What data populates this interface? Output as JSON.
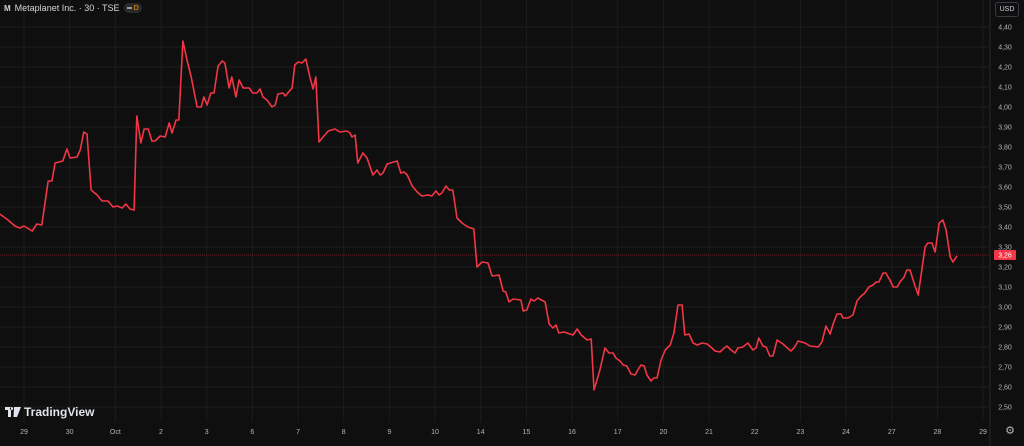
{
  "header": {
    "symbol_icon": "M",
    "title": "Metaplanet Inc. · 30 · TSE",
    "badge_letter": "D"
  },
  "currency_button": "USD",
  "branding": "TradingView",
  "colors": {
    "background": "#0f0f0f",
    "grid": "#1c1c1c",
    "line": "#f23645",
    "axis_text": "#b2b5be",
    "price_label_bg": "#f23645"
  },
  "icons": {
    "settings": "gear-icon",
    "logo": "tradingview-logo-icon"
  },
  "chart_data": {
    "type": "line",
    "title": "Metaplanet Inc. · 30 · TSE",
    "interval": "30",
    "currency": "USD",
    "x_unit": "trading sessions (0 = label 29)",
    "x_ticks": [
      "29",
      "30",
      "Oct",
      "2",
      "3",
      "6",
      "7",
      "8",
      "9",
      "10",
      "14",
      "15",
      "16",
      "17",
      "20",
      "21",
      "22",
      "23",
      "24",
      "27",
      "28",
      "29"
    ],
    "y_ticks": [
      "4,40",
      "4,30",
      "4,20",
      "4,10",
      "4,00",
      "3,90",
      "3,80",
      "3,70",
      "3,60",
      "3,50",
      "3,40",
      "3,30",
      "3,20",
      "3,10",
      "3,00",
      "2,90",
      "2,80",
      "2,70",
      "2,60",
      "2,50"
    ],
    "ylim": [
      2.5,
      4.4
    ],
    "grid": true,
    "last_price": 3.26,
    "last_price_label": "3,26",
    "series": [
      {
        "points": [
          [
            -0.53,
            3.465
          ],
          [
            -0.35,
            3.435
          ],
          [
            -0.2,
            3.405
          ],
          [
            -0.09,
            3.395
          ],
          [
            0,
            3.405
          ],
          [
            0.18,
            3.38
          ],
          [
            0.28,
            3.415
          ],
          [
            0.39,
            3.41
          ],
          [
            0.53,
            3.63
          ],
          [
            0.61,
            3.63
          ],
          [
            0.68,
            3.72
          ],
          [
            0.85,
            3.73
          ],
          [
            0.94,
            3.79
          ],
          [
            1.01,
            3.745
          ],
          [
            1.16,
            3.75
          ],
          [
            1.23,
            3.785
          ],
          [
            1.31,
            3.875
          ],
          [
            1.38,
            3.865
          ],
          [
            1.47,
            3.585
          ],
          [
            1.6,
            3.56
          ],
          [
            1.71,
            3.53
          ],
          [
            1.84,
            3.53
          ],
          [
            1.95,
            3.5
          ],
          [
            2.04,
            3.505
          ],
          [
            2.15,
            3.495
          ],
          [
            2.23,
            3.515
          ],
          [
            2.32,
            3.49
          ],
          [
            2.41,
            3.485
          ],
          [
            2.47,
            3.955
          ],
          [
            2.56,
            3.82
          ],
          [
            2.63,
            3.89
          ],
          [
            2.72,
            3.89
          ],
          [
            2.8,
            3.83
          ],
          [
            2.87,
            3.83
          ],
          [
            2.98,
            3.855
          ],
          [
            3.09,
            3.85
          ],
          [
            3.18,
            3.92
          ],
          [
            3.24,
            3.87
          ],
          [
            3.33,
            3.935
          ],
          [
            3.39,
            3.935
          ],
          [
            3.48,
            4.33
          ],
          [
            3.57,
            4.235
          ],
          [
            3.66,
            4.15
          ],
          [
            3.79,
            4.0
          ],
          [
            3.88,
            4.0
          ],
          [
            3.94,
            4.05
          ],
          [
            4.01,
            4.01
          ],
          [
            4.09,
            4.07
          ],
          [
            4.16,
            4.07
          ],
          [
            4.25,
            4.205
          ],
          [
            4.34,
            4.23
          ],
          [
            4.4,
            4.22
          ],
          [
            4.49,
            4.095
          ],
          [
            4.55,
            4.15
          ],
          [
            4.64,
            4.05
          ],
          [
            4.71,
            4.135
          ],
          [
            4.8,
            4.095
          ],
          [
            4.93,
            4.095
          ],
          [
            5.01,
            4.07
          ],
          [
            5.1,
            4.07
          ],
          [
            5.17,
            4.09
          ],
          [
            5.23,
            4.05
          ],
          [
            5.32,
            4.035
          ],
          [
            5.43,
            4.0
          ],
          [
            5.5,
            4.01
          ],
          [
            5.56,
            4.065
          ],
          [
            5.67,
            4.07
          ],
          [
            5.72,
            4.055
          ],
          [
            5.87,
            4.095
          ],
          [
            5.93,
            4.21
          ],
          [
            6.0,
            4.225
          ],
          [
            6.09,
            4.22
          ],
          [
            6.17,
            4.24
          ],
          [
            6.26,
            4.15
          ],
          [
            6.33,
            4.09
          ],
          [
            6.39,
            4.15
          ],
          [
            6.46,
            3.825
          ],
          [
            6.55,
            3.85
          ],
          [
            6.66,
            3.88
          ],
          [
            6.81,
            3.89
          ],
          [
            6.92,
            3.875
          ],
          [
            7.07,
            3.88
          ],
          [
            7.14,
            3.87
          ],
          [
            7.18,
            3.85
          ],
          [
            7.25,
            3.86
          ],
          [
            7.31,
            3.72
          ],
          [
            7.42,
            3.77
          ],
          [
            7.51,
            3.745
          ],
          [
            7.64,
            3.66
          ],
          [
            7.73,
            3.685
          ],
          [
            7.8,
            3.66
          ],
          [
            7.86,
            3.67
          ],
          [
            7.95,
            3.715
          ],
          [
            8.17,
            3.73
          ],
          [
            8.25,
            3.67
          ],
          [
            8.32,
            3.675
          ],
          [
            8.39,
            3.66
          ],
          [
            8.5,
            3.605
          ],
          [
            8.61,
            3.575
          ],
          [
            8.71,
            3.555
          ],
          [
            8.85,
            3.56
          ],
          [
            8.93,
            3.555
          ],
          [
            9.02,
            3.58
          ],
          [
            9.09,
            3.56
          ],
          [
            9.15,
            3.57
          ],
          [
            9.24,
            3.605
          ],
          [
            9.31,
            3.585
          ],
          [
            9.39,
            3.585
          ],
          [
            9.48,
            3.445
          ],
          [
            9.59,
            3.42
          ],
          [
            9.72,
            3.4
          ],
          [
            9.85,
            3.39
          ],
          [
            9.92,
            3.2
          ],
          [
            10.03,
            3.225
          ],
          [
            10.16,
            3.22
          ],
          [
            10.25,
            3.155
          ],
          [
            10.4,
            3.16
          ],
          [
            10.49,
            3.08
          ],
          [
            10.55,
            3.075
          ],
          [
            10.62,
            3.025
          ],
          [
            10.71,
            3.04
          ],
          [
            10.88,
            3.035
          ],
          [
            10.93,
            2.98
          ],
          [
            11.01,
            2.985
          ],
          [
            11.1,
            3.04
          ],
          [
            11.17,
            3.03
          ],
          [
            11.25,
            3.045
          ],
          [
            11.41,
            3.025
          ],
          [
            11.5,
            2.915
          ],
          [
            11.58,
            2.895
          ],
          [
            11.65,
            2.91
          ],
          [
            11.71,
            2.87
          ],
          [
            11.82,
            2.875
          ],
          [
            12.02,
            2.86
          ],
          [
            12.11,
            2.89
          ],
          [
            12.2,
            2.86
          ],
          [
            12.33,
            2.835
          ],
          [
            12.42,
            2.84
          ],
          [
            12.48,
            2.585
          ],
          [
            12.61,
            2.685
          ],
          [
            12.72,
            2.795
          ],
          [
            12.81,
            2.77
          ],
          [
            12.9,
            2.77
          ],
          [
            12.96,
            2.745
          ],
          [
            13.05,
            2.73
          ],
          [
            13.12,
            2.71
          ],
          [
            13.2,
            2.705
          ],
          [
            13.29,
            2.665
          ],
          [
            13.38,
            2.66
          ],
          [
            13.44,
            2.685
          ],
          [
            13.51,
            2.71
          ],
          [
            13.58,
            2.705
          ],
          [
            13.64,
            2.66
          ],
          [
            13.73,
            2.63
          ],
          [
            13.79,
            2.645
          ],
          [
            13.86,
            2.645
          ],
          [
            13.95,
            2.735
          ],
          [
            14.04,
            2.785
          ],
          [
            14.15,
            2.81
          ],
          [
            14.23,
            2.87
          ],
          [
            14.32,
            3.01
          ],
          [
            14.41,
            3.01
          ],
          [
            14.47,
            2.86
          ],
          [
            14.56,
            2.865
          ],
          [
            14.65,
            2.82
          ],
          [
            14.74,
            2.81
          ],
          [
            14.85,
            2.82
          ],
          [
            14.96,
            2.815
          ],
          [
            15.06,
            2.795
          ],
          [
            15.13,
            2.78
          ],
          [
            15.24,
            2.775
          ],
          [
            15.31,
            2.79
          ],
          [
            15.39,
            2.805
          ],
          [
            15.48,
            2.785
          ],
          [
            15.57,
            2.77
          ],
          [
            15.63,
            2.795
          ],
          [
            15.74,
            2.8
          ],
          [
            15.85,
            2.82
          ],
          [
            15.96,
            2.785
          ],
          [
            16.03,
            2.795
          ],
          [
            16.09,
            2.845
          ],
          [
            16.18,
            2.805
          ],
          [
            16.25,
            2.8
          ],
          [
            16.33,
            2.755
          ],
          [
            16.4,
            2.755
          ],
          [
            16.49,
            2.835
          ],
          [
            16.62,
            2.815
          ],
          [
            16.79,
            2.78
          ],
          [
            16.86,
            2.795
          ],
          [
            16.95,
            2.83
          ],
          [
            17.1,
            2.82
          ],
          [
            17.21,
            2.805
          ],
          [
            17.39,
            2.8
          ],
          [
            17.47,
            2.825
          ],
          [
            17.56,
            2.905
          ],
          [
            17.65,
            2.865
          ],
          [
            17.71,
            2.91
          ],
          [
            17.8,
            2.965
          ],
          [
            17.89,
            2.965
          ],
          [
            17.93,
            2.945
          ],
          [
            18.04,
            2.945
          ],
          [
            18.15,
            2.96
          ],
          [
            18.24,
            3.03
          ],
          [
            18.31,
            3.05
          ],
          [
            18.41,
            3.07
          ],
          [
            18.5,
            3.1
          ],
          [
            18.59,
            3.11
          ],
          [
            18.66,
            3.125
          ],
          [
            18.72,
            3.125
          ],
          [
            18.81,
            3.17
          ],
          [
            18.87,
            3.17
          ],
          [
            18.96,
            3.135
          ],
          [
            19.03,
            3.1
          ],
          [
            19.12,
            3.1
          ],
          [
            19.18,
            3.125
          ],
          [
            19.27,
            3.15
          ],
          [
            19.33,
            3.185
          ],
          [
            19.4,
            3.185
          ],
          [
            19.51,
            3.105
          ],
          [
            19.58,
            3.06
          ],
          [
            19.73,
            3.3
          ],
          [
            19.79,
            3.32
          ],
          [
            19.88,
            3.32
          ],
          [
            19.95,
            3.275
          ],
          [
            20.04,
            3.42
          ],
          [
            20.12,
            3.435
          ],
          [
            20.19,
            3.385
          ],
          [
            20.28,
            3.25
          ],
          [
            20.34,
            3.225
          ],
          [
            20.43,
            3.255
          ]
        ]
      }
    ]
  }
}
